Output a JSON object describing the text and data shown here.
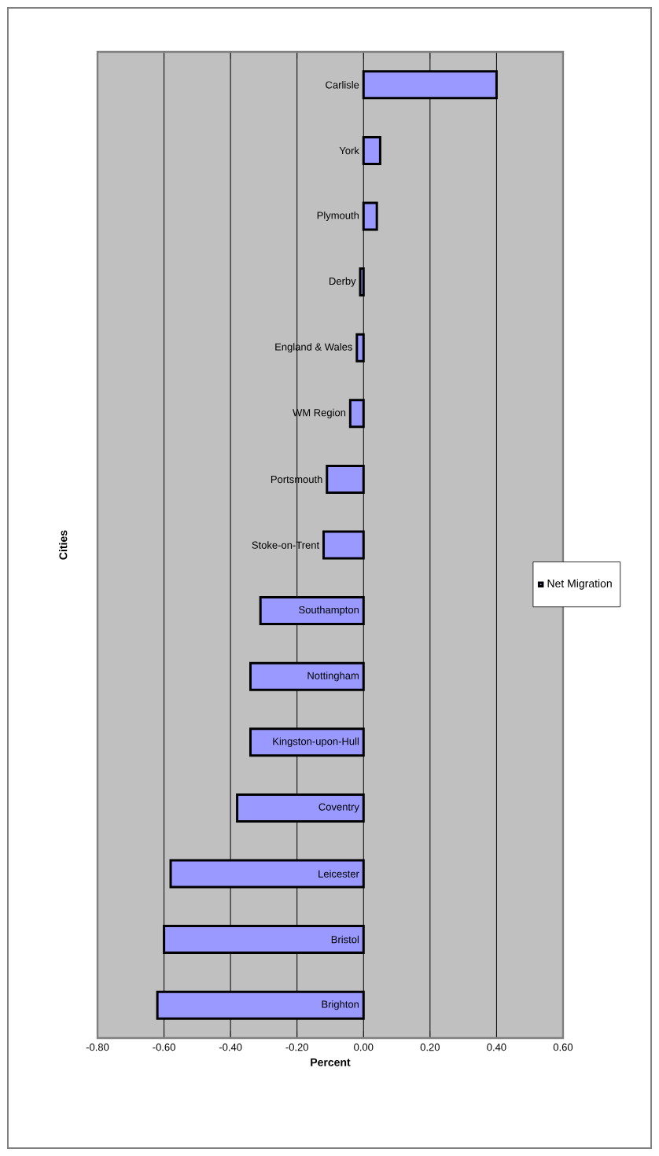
{
  "chart_data": {
    "type": "bar",
    "orientation": "horizontal",
    "xlabel": "Percent",
    "ylabel": "Cities",
    "categories": [
      "Carlisle",
      "York",
      "Plymouth",
      "Derby",
      "England & Wales",
      "WM Region",
      "Portsmouth",
      "Stoke-on-Trent",
      "Southampton",
      "Nottingham",
      "Kingston-upon-Hull",
      "Coventry",
      "Leicester",
      "Bristol",
      "Brighton"
    ],
    "series": [
      {
        "name": "Net Migration",
        "color": "#9999ff",
        "values": [
          0.4,
          0.05,
          0.04,
          -0.01,
          -0.02,
          -0.04,
          -0.11,
          -0.12,
          -0.31,
          -0.34,
          -0.34,
          -0.38,
          -0.58,
          -0.6,
          -0.62
        ]
      }
    ],
    "xlim": [
      -0.8,
      0.6
    ],
    "xticks": [
      {
        "value": -0.8,
        "label": "-0.80"
      },
      {
        "value": -0.6,
        "label": "-0.60"
      },
      {
        "value": -0.4,
        "label": "-0.40"
      },
      {
        "value": -0.2,
        "label": "-0.20"
      },
      {
        "value": 0,
        "label": "0.00"
      },
      {
        "value": 0.2,
        "label": "0.20"
      },
      {
        "value": 0.4,
        "label": "0.40"
      },
      {
        "value": 0.6,
        "label": "0.60"
      }
    ],
    "grid": "x",
    "legend": "right"
  }
}
